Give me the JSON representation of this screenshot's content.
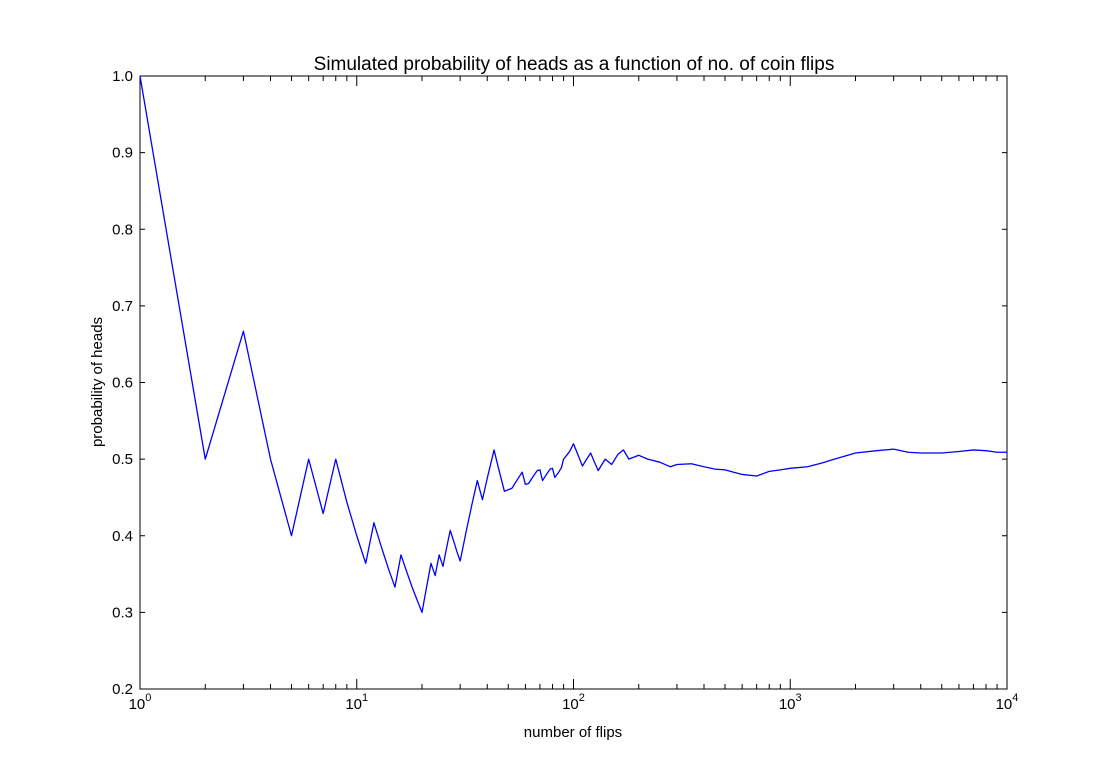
{
  "chart_data": {
    "type": "line",
    "title": "Simulated probability of heads as a function of no. of coin flips",
    "xlabel": "number of flips",
    "ylabel": "probability of heads",
    "xscale": "log",
    "xlim": [
      1,
      10000
    ],
    "ylim": [
      0.2,
      1.0
    ],
    "grid": false,
    "legend": "none",
    "x_ticks": [
      {
        "base": "10",
        "exp": "0"
      },
      {
        "base": "10",
        "exp": "1"
      },
      {
        "base": "10",
        "exp": "2"
      },
      {
        "base": "10",
        "exp": "3"
      },
      {
        "base": "10",
        "exp": "4"
      }
    ],
    "y_ticks": [
      "0.2",
      "0.3",
      "0.4",
      "0.5",
      "0.6",
      "0.7",
      "0.8",
      "0.9",
      "1.0"
    ],
    "series": [
      {
        "color": "#0000ff",
        "x": [
          1,
          2,
          3,
          4,
          5,
          6,
          7,
          8,
          9,
          10,
          11,
          12,
          13,
          14,
          15,
          16,
          17,
          18,
          19,
          20,
          21,
          22,
          23,
          24,
          25,
          26,
          27,
          28,
          29,
          30,
          32,
          34,
          36,
          38,
          40,
          43,
          45,
          48,
          50,
          52,
          55,
          58,
          60,
          62,
          65,
          68,
          70,
          72,
          75,
          78,
          80,
          82,
          85,
          88,
          90,
          93,
          96,
          100,
          105,
          110,
          115,
          120,
          125,
          130,
          140,
          150,
          160,
          170,
          180,
          200,
          220,
          250,
          280,
          300,
          350,
          400,
          450,
          500,
          600,
          700,
          800,
          900,
          1000,
          1200,
          1400,
          1600,
          2000,
          2500,
          3000,
          3500,
          4000,
          5000,
          6000,
          7000,
          8000,
          9000,
          10000
        ],
        "y": [
          1.0,
          0.5,
          0.667,
          0.5,
          0.4,
          0.5,
          0.429,
          0.5,
          0.444,
          0.4,
          0.364,
          0.417,
          0.385,
          0.357,
          0.333,
          0.375,
          0.353,
          0.333,
          0.316,
          0.3,
          0.333,
          0.364,
          0.348,
          0.375,
          0.36,
          0.385,
          0.407,
          0.393,
          0.379,
          0.367,
          0.406,
          0.441,
          0.472,
          0.447,
          0.475,
          0.512,
          0.489,
          0.458,
          0.46,
          0.462,
          0.473,
          0.483,
          0.467,
          0.468,
          0.477,
          0.485,
          0.486,
          0.472,
          0.48,
          0.487,
          0.488,
          0.476,
          0.482,
          0.489,
          0.5,
          0.505,
          0.51,
          0.52,
          0.505,
          0.491,
          0.5,
          0.508,
          0.496,
          0.485,
          0.5,
          0.493,
          0.506,
          0.512,
          0.5,
          0.505,
          0.5,
          0.496,
          0.49,
          0.493,
          0.494,
          0.49,
          0.487,
          0.486,
          0.48,
          0.478,
          0.484,
          0.486,
          0.488,
          0.49,
          0.495,
          0.5,
          0.508,
          0.511,
          0.513,
          0.509,
          0.508,
          0.508,
          0.51,
          0.512,
          0.511,
          0.509,
          0.509
        ]
      }
    ]
  }
}
